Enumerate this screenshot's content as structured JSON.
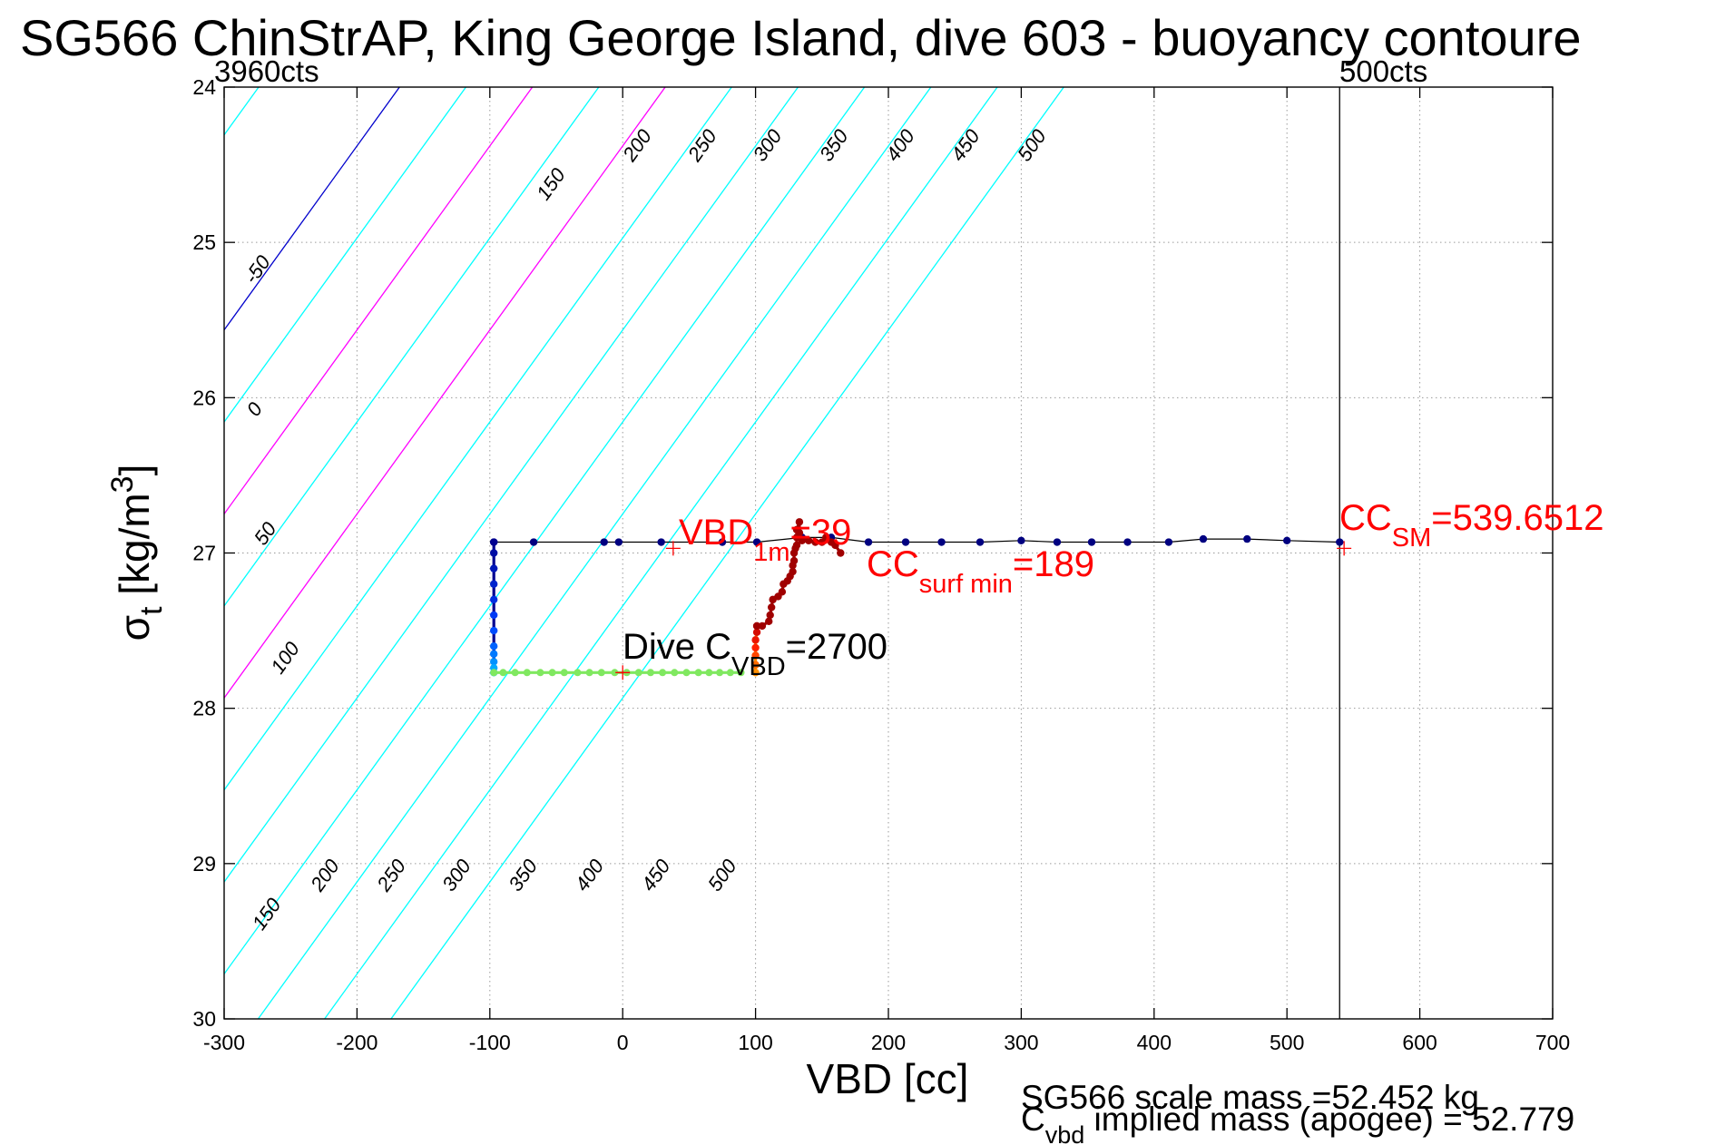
{
  "chart_data": {
    "type": "scatter",
    "title": "SG566 ChinStrAP, King George Island, dive 603 - buoyancy contoure",
    "xlabel": "VBD [cc]",
    "ylabel_main": "σ",
    "ylabel_sub": "t",
    "ylabel_units": " [kg/m",
    "ylabel_sup": "3",
    "ylabel_close": "]",
    "xlim": [
      -300,
      700
    ],
    "ylim": [
      24,
      30
    ],
    "y_reversed": true,
    "grid": true,
    "x_ticks": [
      -300,
      -200,
      -100,
      0,
      100,
      200,
      300,
      400,
      500,
      600,
      700
    ],
    "x_tick_labels": [
      "-300",
      "-200",
      "-100",
      "0",
      "100",
      "200",
      "300",
      "400",
      "500",
      "600",
      "700"
    ],
    "y_ticks": [
      24,
      25,
      26,
      27,
      28,
      29,
      30
    ],
    "y_tick_labels": [
      "24",
      "25",
      "26",
      "27",
      "28",
      "29",
      "30"
    ],
    "count_labels": {
      "left": "3960cts",
      "right": "500cts"
    },
    "cc_sm_line_x": 539.65,
    "contours": {
      "slope_cc_per_sigma": -84.4,
      "levels": [
        {
          "value": -50,
          "label": "-50",
          "color": "#00ffff",
          "x_at_sigma24": -274
        },
        {
          "value": 0,
          "label": "0",
          "color": "#0000cc",
          "x_at_sigma24": -168
        },
        {
          "value": 50,
          "label": "50",
          "color": "#00ffff",
          "x_at_sigma24": -118
        },
        {
          "value": 100,
          "label": "100",
          "color": "#ff00ff",
          "x_at_sigma24": -68
        },
        {
          "value": 150,
          "label": "150",
          "color": "#00ffff",
          "x_at_sigma24": -18
        },
        {
          "value": 200,
          "label": "200",
          "color": "#ff00ff",
          "x_at_sigma24": 32
        },
        {
          "value": 250,
          "label": "250",
          "color": "#00ffff",
          "x_at_sigma24": 82
        },
        {
          "value": 300,
          "label": "300",
          "color": "#00ffff",
          "x_at_sigma24": 132
        },
        {
          "value": 350,
          "label": "350",
          "color": "#00ffff",
          "x_at_sigma24": 182
        },
        {
          "value": 400,
          "label": "400",
          "color": "#00ffff",
          "x_at_sigma24": 232
        },
        {
          "value": 450,
          "label": "450",
          "color": "#00ffff",
          "x_at_sigma24": 282
        },
        {
          "value": 500,
          "label": "500",
          "color": "#00ffff",
          "x_at_sigma24": 332
        }
      ],
      "labels_top": [
        {
          "label": "-50",
          "x": -271,
          "y": 25.2
        },
        {
          "label": "0",
          "x": -273,
          "y": 26.1
        },
        {
          "label": "50",
          "x": -265,
          "y": 26.9
        },
        {
          "label": "100",
          "x": -250,
          "y": 27.7
        },
        {
          "label": "150",
          "x": -50,
          "y": 24.65
        },
        {
          "label": "200",
          "x": 15,
          "y": 24.4
        },
        {
          "label": "250",
          "x": 64,
          "y": 24.4
        },
        {
          "label": "300",
          "x": 113,
          "y": 24.4
        },
        {
          "label": "350",
          "x": 163,
          "y": 24.4
        },
        {
          "label": "400",
          "x": 213,
          "y": 24.4
        },
        {
          "label": "450",
          "x": 262,
          "y": 24.4
        },
        {
          "label": "500",
          "x": 312,
          "y": 24.4
        }
      ],
      "labels_bottom": [
        {
          "label": "150",
          "x": -264,
          "y": 29.35
        },
        {
          "label": "200",
          "x": -220,
          "y": 29.1
        },
        {
          "label": "250",
          "x": -170,
          "y": 29.1
        },
        {
          "label": "300",
          "x": -121,
          "y": 29.1
        },
        {
          "label": "350",
          "x": -71,
          "y": 29.1
        },
        {
          "label": "400",
          "x": -21,
          "y": 29.1
        },
        {
          "label": "450",
          "x": 29,
          "y": 29.1
        },
        {
          "label": "500",
          "x": 79,
          "y": 29.1
        }
      ]
    },
    "series": [
      {
        "color": "#000080",
        "x": [
          -97,
          -67,
          -14,
          -3,
          29,
          75,
          101,
          135,
          157,
          185,
          213,
          240,
          269,
          300,
          327,
          353,
          380,
          411,
          437,
          470,
          500,
          539.65
        ],
        "y": [
          26.93,
          26.93,
          26.93,
          26.93,
          26.93,
          26.93,
          26.93,
          26.9,
          26.9,
          26.93,
          26.93,
          26.93,
          26.93,
          26.92,
          26.93,
          26.93,
          26.93,
          26.93,
          26.91,
          26.91,
          26.92,
          26.93
        ]
      },
      {
        "color_stops": [
          "#000090",
          "#0040ff",
          "#00c0ff"
        ],
        "x": [
          -97,
          -97,
          -97,
          -97,
          -97,
          -97,
          -97,
          -97,
          -97,
          -97,
          -97,
          -97
        ],
        "y": [
          26.93,
          27.0,
          27.1,
          27.2,
          27.3,
          27.4,
          27.5,
          27.6,
          27.65,
          27.7,
          27.74,
          27.77
        ]
      },
      {
        "color": "#80e860",
        "x": [
          -97,
          -90,
          -81,
          -72,
          -62,
          -53,
          -44,
          -34,
          -25,
          -16,
          -6,
          3,
          12,
          21,
          30,
          39,
          48,
          57,
          65,
          73,
          81,
          89
        ],
        "y": [
          27.77,
          27.77,
          27.77,
          27.77,
          27.77,
          27.77,
          27.77,
          27.77,
          27.77,
          27.77,
          27.77,
          27.77,
          27.77,
          27.77,
          27.77,
          27.77,
          27.77,
          27.77,
          27.77,
          27.77,
          27.77,
          27.77
        ]
      },
      {
        "color_stops": [
          "#ff9000",
          "#ff2000",
          "#c00000"
        ],
        "x": [
          100,
          100,
          100,
          100,
          100,
          101,
          101
        ],
        "y": [
          27.77,
          27.72,
          27.66,
          27.61,
          27.56,
          27.51,
          27.47
        ]
      },
      {
        "color": "#a00000",
        "x": [
          101,
          105,
          110,
          111,
          112,
          113,
          117,
          120,
          121,
          124,
          126,
          128,
          128,
          129,
          129,
          130,
          131,
          131,
          131,
          133,
          133,
          135,
          140,
          145,
          150,
          153,
          157,
          160,
          164
        ],
        "y": [
          27.47,
          27.47,
          27.44,
          27.4,
          27.35,
          27.3,
          27.28,
          27.25,
          27.2,
          27.18,
          27.15,
          27.12,
          27.08,
          27.05,
          27.0,
          26.97,
          26.95,
          26.9,
          26.85,
          26.8,
          26.87,
          26.92,
          26.92,
          26.93,
          26.93,
          26.9,
          26.93,
          26.95,
          27.0
        ]
      }
    ],
    "markers": [
      {
        "x": 38,
        "y": 26.97,
        "color": "#ff0000"
      },
      {
        "x": 0,
        "y": 27.77,
        "color": "#ff0000"
      },
      {
        "x": 543,
        "y": 26.97,
        "color": "#ff0000"
      }
    ],
    "annotations": {
      "vbd_main": "VBD",
      "vbd_sub": "1m",
      "vbd_value": "=39",
      "cc_surf_main": "CC",
      "cc_surf_sub": "surf min",
      "cc_surf_value": "=189",
      "cc_sm_main": "CC",
      "cc_sm_sub": "SM",
      "cc_sm_value": "=539.6512",
      "dive_main": "Dive C",
      "dive_sub": "VBD",
      "dive_value": "=2700"
    },
    "footer": {
      "line1": "SG566 scale mass =52.452 kg",
      "line2_main": "C",
      "line2_sub": "vbd",
      "line2_rest": " implied mass (apogee) = 52.779"
    },
    "annotation_color": "#ff0000"
  }
}
